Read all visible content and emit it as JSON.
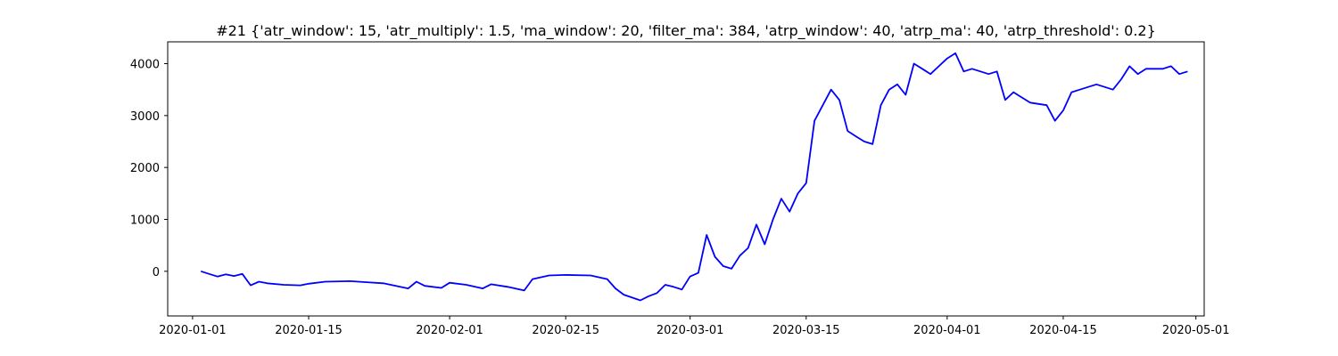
{
  "colors": {
    "line": "#0000ff",
    "axis": "#000000",
    "background": "#ffffff"
  },
  "chart_data": {
    "type": "line",
    "title": "#21 {'atr_window': 15, 'atr_multiply': 1.5, 'ma_window': 20, 'filter_ma': 384, 'atrp_window': 40, 'atrp_ma': 40, 'atrp_threshold': 0.2}",
    "xlabel": "",
    "ylabel": "",
    "grid": false,
    "x_type": "date",
    "xlim": [
      "2019-12-29",
      "2020-05-02"
    ],
    "ylim": [
      -860,
      4420
    ],
    "x_ticks": [
      "2020-01-01",
      "2020-01-15",
      "2020-02-01",
      "2020-02-15",
      "2020-03-01",
      "2020-03-15",
      "2020-04-01",
      "2020-04-15",
      "2020-05-01"
    ],
    "y_ticks": [
      0,
      1000,
      2000,
      3000,
      4000
    ],
    "series": [
      {
        "color": "#0000ff",
        "x": [
          "2020-01-02",
          "2020-01-03",
          "2020-01-04",
          "2020-01-05",
          "2020-01-06",
          "2020-01-07",
          "2020-01-08",
          "2020-01-09",
          "2020-01-10",
          "2020-01-12",
          "2020-01-14",
          "2020-01-15",
          "2020-01-17",
          "2020-01-20",
          "2020-01-22",
          "2020-01-24",
          "2020-01-27",
          "2020-01-28",
          "2020-01-29",
          "2020-01-31",
          "2020-02-01",
          "2020-02-03",
          "2020-02-05",
          "2020-02-06",
          "2020-02-08",
          "2020-02-10",
          "2020-02-11",
          "2020-02-13",
          "2020-02-15",
          "2020-02-18",
          "2020-02-20",
          "2020-02-21",
          "2020-02-22",
          "2020-02-24",
          "2020-02-25",
          "2020-02-26",
          "2020-02-27",
          "2020-02-28",
          "2020-02-29",
          "2020-03-01",
          "2020-03-02",
          "2020-03-03",
          "2020-03-04",
          "2020-03-05",
          "2020-03-06",
          "2020-03-07",
          "2020-03-08",
          "2020-03-09",
          "2020-03-10",
          "2020-03-11",
          "2020-03-12",
          "2020-03-13",
          "2020-03-14",
          "2020-03-15",
          "2020-03-16",
          "2020-03-17",
          "2020-03-18",
          "2020-03-19",
          "2020-03-20",
          "2020-03-21",
          "2020-03-22",
          "2020-03-23",
          "2020-03-24",
          "2020-03-25",
          "2020-03-26",
          "2020-03-27",
          "2020-03-28",
          "2020-03-29",
          "2020-03-30",
          "2020-03-31",
          "2020-04-01",
          "2020-04-02",
          "2020-04-03",
          "2020-04-04",
          "2020-04-06",
          "2020-04-07",
          "2020-04-08",
          "2020-04-09",
          "2020-04-11",
          "2020-04-13",
          "2020-04-14",
          "2020-04-15",
          "2020-04-16",
          "2020-04-17",
          "2020-04-19",
          "2020-04-21",
          "2020-04-22",
          "2020-04-23",
          "2020-04-24",
          "2020-04-25",
          "2020-04-27",
          "2020-04-28",
          "2020-04-29",
          "2020-04-30"
        ],
        "y": [
          0,
          -50,
          -100,
          -60,
          -90,
          -50,
          -270,
          -200,
          -230,
          -260,
          -270,
          -240,
          -200,
          -190,
          -210,
          -230,
          -330,
          -200,
          -280,
          -320,
          -220,
          -260,
          -330,
          -250,
          -300,
          -370,
          -150,
          -80,
          -70,
          -80,
          -150,
          -330,
          -450,
          -560,
          -480,
          -420,
          -260,
          -300,
          -350,
          -100,
          -30,
          700,
          280,
          100,
          50,
          300,
          450,
          900,
          520,
          1000,
          1400,
          1150,
          1500,
          1700,
          2900,
          3200,
          3500,
          3300,
          2700,
          2600,
          2500,
          2450,
          3200,
          3500,
          3600,
          3400,
          4000,
          3900,
          3800,
          3950,
          4100,
          4200,
          3850,
          3900,
          3800,
          3850,
          3300,
          3450,
          3250,
          3200,
          2900,
          3100,
          3450,
          3500,
          3600,
          3500,
          3700,
          3950,
          3800,
          3900,
          3900,
          3950,
          3800,
          3850
        ]
      }
    ]
  }
}
